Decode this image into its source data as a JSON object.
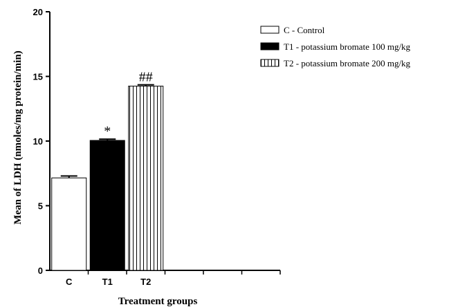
{
  "chart_data": {
    "type": "bar",
    "categories": [
      "C",
      "T1",
      "T2"
    ],
    "values": [
      7.15,
      10.05,
      14.25
    ],
    "errors": [
      0.15,
      0.1,
      0.1
    ],
    "fills": [
      "white",
      "black",
      "vertical-stripes"
    ],
    "annotations": [
      "",
      "*",
      "##"
    ],
    "xlabel": "Treatment groups",
    "ylabel": "Mean of LDH (nmoles/mg protein/min)",
    "ylim": [
      0,
      20
    ],
    "yticks": [
      0,
      5,
      10,
      15,
      20
    ],
    "empty_x_slots": 3,
    "legend": [
      {
        "label": "C - Control",
        "fill": "white"
      },
      {
        "label": "T1 - potassium bromate 100 mg/kg",
        "fill": "black"
      },
      {
        "label": "T2 - potassium bromate 200 mg/kg",
        "fill": "vertical-stripes"
      }
    ],
    "legend_position": "top-right",
    "grid": false
  }
}
